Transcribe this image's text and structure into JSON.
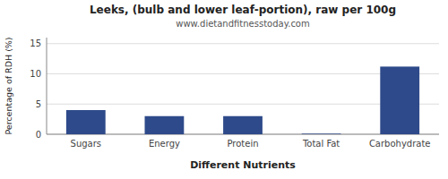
{
  "chart_data": {
    "type": "bar",
    "title": "Leeks, (bulb and lower leaf-portion), raw per 100g",
    "subtitle": "www.dietandfitnesstoday.com",
    "categories": [
      "Sugars",
      "Energy",
      "Protein",
      "Total Fat",
      "Carbohydrate"
    ],
    "values": [
      4.0,
      3.0,
      3.0,
      0.1,
      11.2
    ],
    "color": "#2e4a8a",
    "xlabel": "Different Nutrients",
    "ylabel": "Percentage of RDH (%)",
    "ylim": [
      0,
      16
    ],
    "yticks": [
      0,
      5,
      10,
      15
    ],
    "grid": true
  }
}
